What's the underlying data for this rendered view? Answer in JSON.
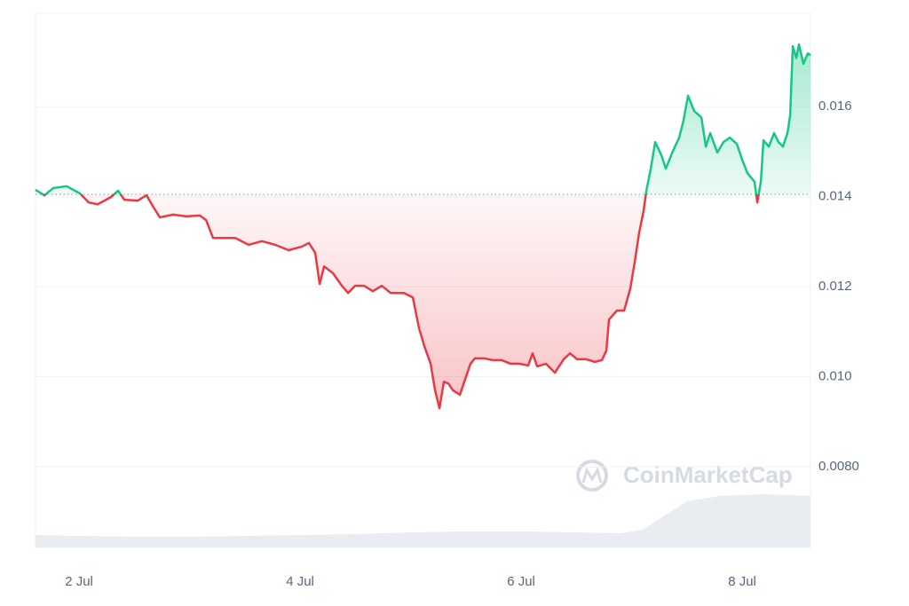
{
  "chart_data": {
    "type": "line",
    "x": [
      1.606,
      1.687,
      1.767,
      1.888,
      2.008,
      2.088,
      2.169,
      2.289,
      2.353,
      2.41,
      2.53,
      2.61,
      2.667,
      2.731,
      2.851,
      2.972,
      3.092,
      3.149,
      3.213,
      3.333,
      3.414,
      3.534,
      3.655,
      3.775,
      3.896,
      4.016,
      4.08,
      4.137,
      4.177,
      4.217,
      4.297,
      4.378,
      4.434,
      4.498,
      4.578,
      4.659,
      4.739,
      4.819,
      4.94,
      5.02,
      5.076,
      5.124,
      5.181,
      5.221,
      5.261,
      5.301,
      5.341,
      5.382,
      5.446,
      5.486,
      5.542,
      5.582,
      5.663,
      5.743,
      5.823,
      5.904,
      5.984,
      6.064,
      6.104,
      6.145,
      6.225,
      6.305,
      6.386,
      6.442,
      6.506,
      6.586,
      6.667,
      6.731,
      6.771,
      6.795,
      6.867,
      6.932,
      6.988,
      7.028,
      7.068,
      7.108,
      7.133,
      7.173,
      7.213,
      7.269,
      7.309,
      7.373,
      7.43,
      7.47,
      7.51,
      7.566,
      7.631,
      7.671,
      7.711,
      7.775,
      7.831,
      7.888,
      7.952,
      8.0,
      8.048,
      8.112,
      8.137,
      8.169,
      8.193,
      8.241,
      8.289,
      8.329,
      8.369,
      8.41,
      8.434,
      8.458,
      8.49,
      8.514,
      8.554,
      8.594,
      8.618
    ],
    "values": [
      0.01415,
      0.01403,
      0.01419,
      0.01423,
      0.01407,
      0.01387,
      0.01383,
      0.01399,
      0.01413,
      0.01393,
      0.01391,
      0.01403,
      0.01379,
      0.01354,
      0.0136,
      0.01356,
      0.01358,
      0.01348,
      0.01308,
      0.01308,
      0.01308,
      0.01293,
      0.01301,
      0.01293,
      0.01281,
      0.01289,
      0.01297,
      0.01275,
      0.01206,
      0.01245,
      0.0123,
      0.01202,
      0.01186,
      0.01202,
      0.01202,
      0.0119,
      0.01202,
      0.01186,
      0.01186,
      0.01176,
      0.01108,
      0.01068,
      0.01029,
      0.0097,
      0.0093,
      0.00989,
      0.00985,
      0.0097,
      0.0096,
      0.00989,
      0.01029,
      0.01041,
      0.01041,
      0.01037,
      0.01037,
      0.01029,
      0.01029,
      0.01025,
      0.01052,
      0.01023,
      0.01029,
      0.01009,
      0.01039,
      0.01052,
      0.01039,
      0.01039,
      0.01033,
      0.01037,
      0.01058,
      0.01127,
      0.01147,
      0.01147,
      0.01196,
      0.01255,
      0.0132,
      0.01368,
      0.01413,
      0.01462,
      0.01521,
      0.01492,
      0.01462,
      0.01501,
      0.01531,
      0.0157,
      0.01624,
      0.0159,
      0.01576,
      0.01511,
      0.01541,
      0.01498,
      0.01521,
      0.01531,
      0.01517,
      0.01482,
      0.01452,
      0.01433,
      0.01387,
      0.01433,
      0.01525,
      0.01511,
      0.01541,
      0.01521,
      0.01511,
      0.01541,
      0.0158,
      0.01734,
      0.01708,
      0.01738,
      0.01695,
      0.01718,
      0.01714
    ],
    "baseline": 0.01405,
    "up_color": "#16c784",
    "down_color": "#ea3943",
    "xlim": [
      1.606,
      8.618
    ],
    "xticks": [
      {
        "value": 2,
        "label": "2 Jul"
      },
      {
        "value": 4,
        "label": "4 Jul"
      },
      {
        "value": 6,
        "label": "6 Jul"
      },
      {
        "value": 8,
        "label": "8 Jul"
      }
    ],
    "ylim": [
      0.00621,
      0.01807
    ],
    "yticks": [
      {
        "value": 0.008,
        "label": "0.0080"
      },
      {
        "value": 0.01,
        "label": "0.010"
      },
      0.012,
      0.014,
      0.016
    ],
    "grid": true,
    "volume": {
      "x": [
        1.606,
        2.0,
        2.5,
        3.0,
        3.5,
        4.0,
        4.5,
        5.0,
        5.5,
        6.0,
        6.5,
        6.9,
        7.1,
        7.3,
        7.5,
        7.8,
        8.2,
        8.618
      ],
      "values": [
        14,
        13,
        12,
        12,
        13,
        14,
        15,
        17,
        18,
        18,
        17,
        16,
        20,
        36,
        52,
        58,
        60,
        58
      ],
      "ylim": [
        0,
        100
      ],
      "color": "#e9ecf1"
    },
    "watermark": "CoinMarketCap"
  }
}
